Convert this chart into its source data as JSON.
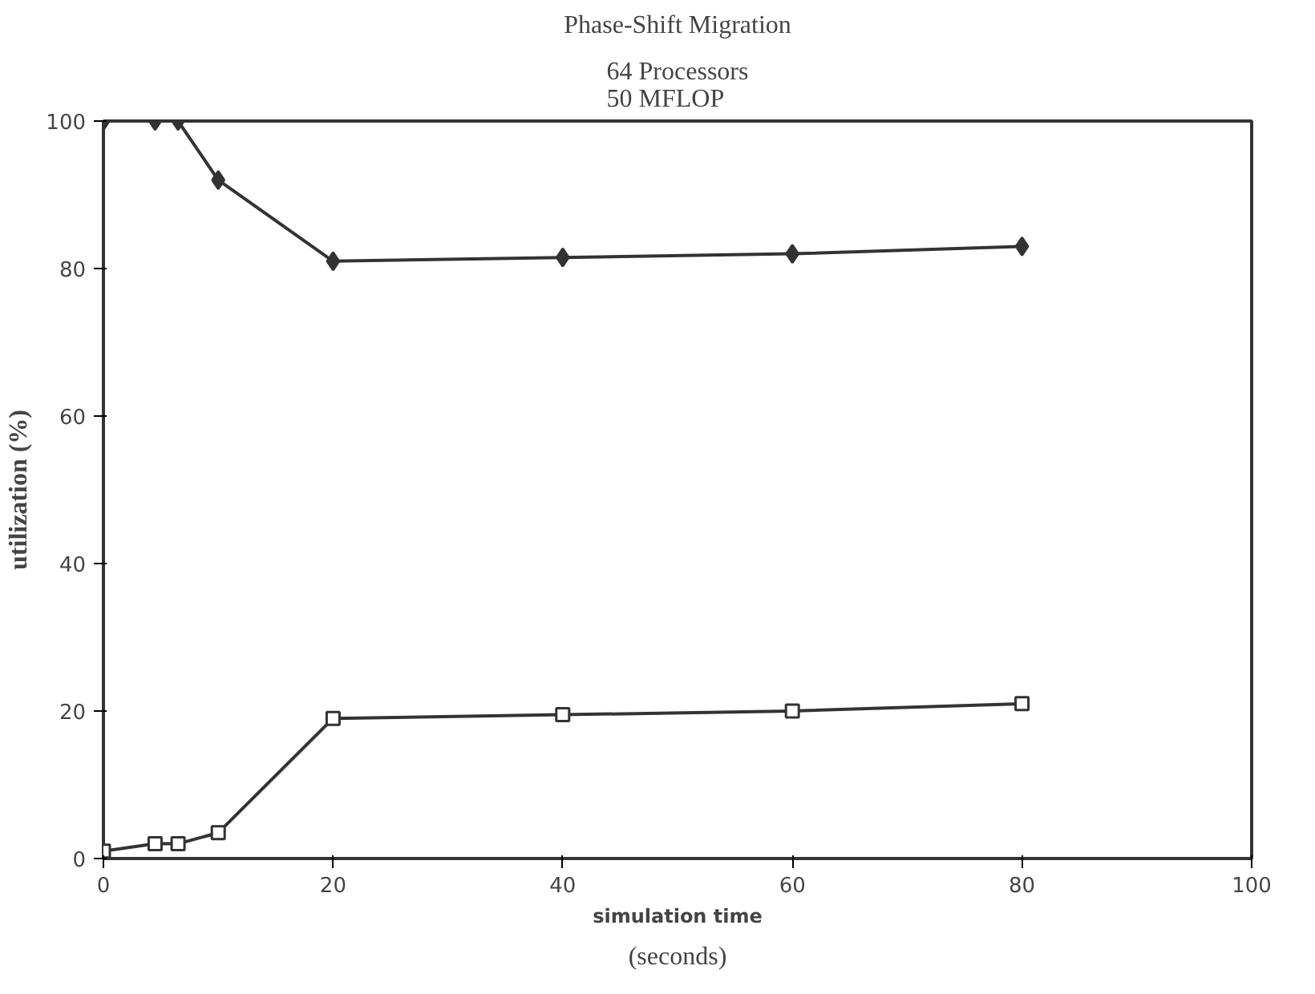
{
  "chart_data": {
    "type": "line",
    "title": "Phase-Shift Migration",
    "subtitle": "64 Processors\n50 MFLOP",
    "xlabel": "simulation time",
    "ylabel": "utilization (%)",
    "annotations": [
      "(seconds)"
    ],
    "xlim": [
      0,
      100
    ],
    "ylim": [
      0,
      100
    ],
    "xticks": [
      0,
      20,
      40,
      60,
      80,
      100
    ],
    "yticks": [
      0,
      20,
      40,
      60,
      80,
      100
    ],
    "grid": false,
    "series": [
      {
        "color": "#333333",
        "marker": "diamond",
        "x": [
          0,
          4.5,
          6.5,
          10,
          20,
          40,
          60,
          80
        ],
        "values": [
          100,
          100,
          100,
          92,
          81,
          81.5,
          82,
          83
        ]
      },
      {
        "color": "#333333",
        "marker": "square",
        "x": [
          0,
          4.5,
          6.5,
          10,
          20,
          40,
          60,
          80
        ],
        "values": [
          1,
          2,
          2,
          3.5,
          19,
          19.5,
          20,
          21
        ]
      }
    ]
  }
}
